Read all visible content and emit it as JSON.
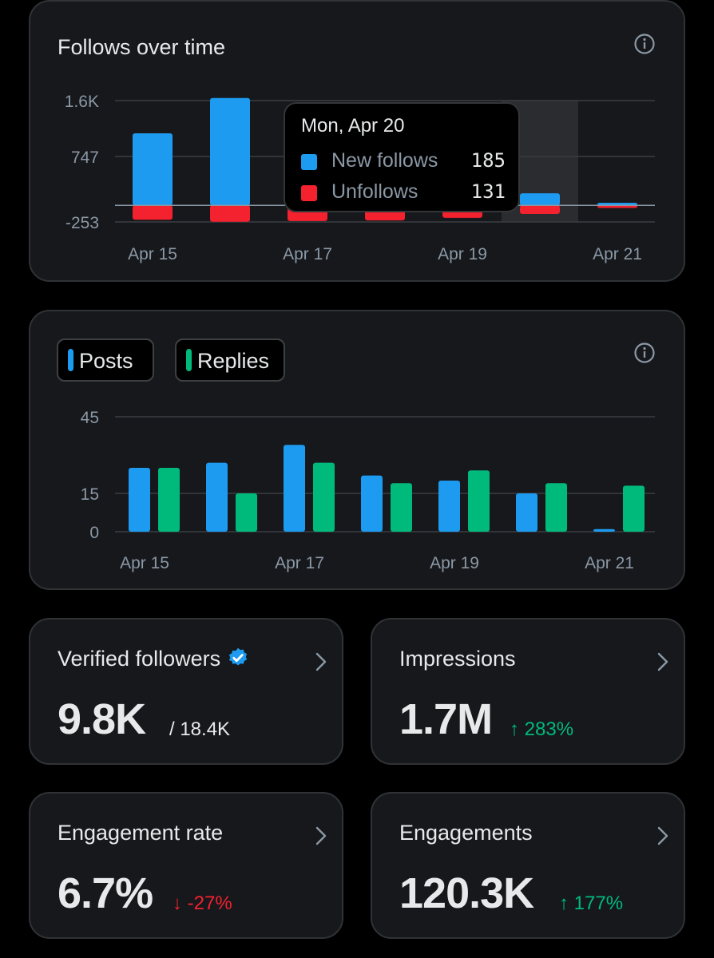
{
  "follows_card": {
    "title": "Follows over time",
    "info_icon": "info-icon",
    "tooltip": {
      "date": "Mon, Apr 20",
      "rows": [
        {
          "label": "New follows",
          "value": "185",
          "color": "#1d9bf0"
        },
        {
          "label": "Unfollows",
          "value": "131",
          "color": "#f4212e"
        }
      ]
    }
  },
  "posts_card": {
    "legend": [
      {
        "label": "Posts",
        "color": "#1d9bf0"
      },
      {
        "label": "Replies",
        "color": "#00ba7c"
      }
    ],
    "info_icon": "info-icon"
  },
  "chart_data": [
    {
      "type": "bar",
      "title": "Follows over time",
      "categories": [
        "Apr 15",
        "Apr 16",
        "Apr 17",
        "Apr 18",
        "Apr 19",
        "Apr 20",
        "Apr 21"
      ],
      "x_tick_labels": [
        "Apr 15",
        "Apr 17",
        "Apr 19",
        "Apr 21"
      ],
      "y_tick_labels": [
        "1.6K",
        "747",
        "-253"
      ],
      "y_ticks": [
        1600,
        747,
        -253
      ],
      "ylim": [
        -253,
        1600
      ],
      "highlighted": "Apr 20",
      "series": [
        {
          "name": "New follows",
          "color": "#1d9bf0",
          "values": [
            1100,
            1640,
            60,
            40,
            70,
            185,
            40
          ]
        },
        {
          "name": "Unfollows",
          "color": "#f4212e",
          "values": [
            -220,
            -250,
            -240,
            -230,
            -190,
            -131,
            -40
          ]
        }
      ]
    },
    {
      "type": "bar",
      "title": "",
      "categories": [
        "Apr 15",
        "Apr 16",
        "Apr 17",
        "Apr 18",
        "Apr 19",
        "Apr 20",
        "Apr 21"
      ],
      "x_tick_labels": [
        "Apr 15",
        "Apr 17",
        "Apr 19",
        "Apr 21"
      ],
      "y_tick_labels": [
        "45",
        "15",
        "0"
      ],
      "y_ticks": [
        45,
        15,
        0
      ],
      "ylim": [
        0,
        45
      ],
      "series": [
        {
          "name": "Posts",
          "color": "#1d9bf0",
          "values": [
            25,
            27,
            34,
            22,
            20,
            15,
            1
          ]
        },
        {
          "name": "Replies",
          "color": "#00ba7c",
          "values": [
            25,
            15,
            27,
            19,
            24,
            19,
            18
          ]
        }
      ]
    }
  ],
  "stats": [
    {
      "title": "Verified followers",
      "value": "9.8K",
      "sub": "/ 18.4K",
      "sub_color": "#e7e9ea",
      "verified": true
    },
    {
      "title": "Impressions",
      "value": "1.7M",
      "sub": "↑ 283%",
      "sub_color": "#00ba7c",
      "verified": false
    },
    {
      "title": "Engagement rate",
      "value": "6.7%",
      "sub": "↓ -27%",
      "sub_color": "#f4212e",
      "verified": false
    },
    {
      "title": "Engagements",
      "value": "120.3K",
      "sub": "↑ 177%",
      "sub_color": "#00ba7c",
      "verified": false
    }
  ]
}
